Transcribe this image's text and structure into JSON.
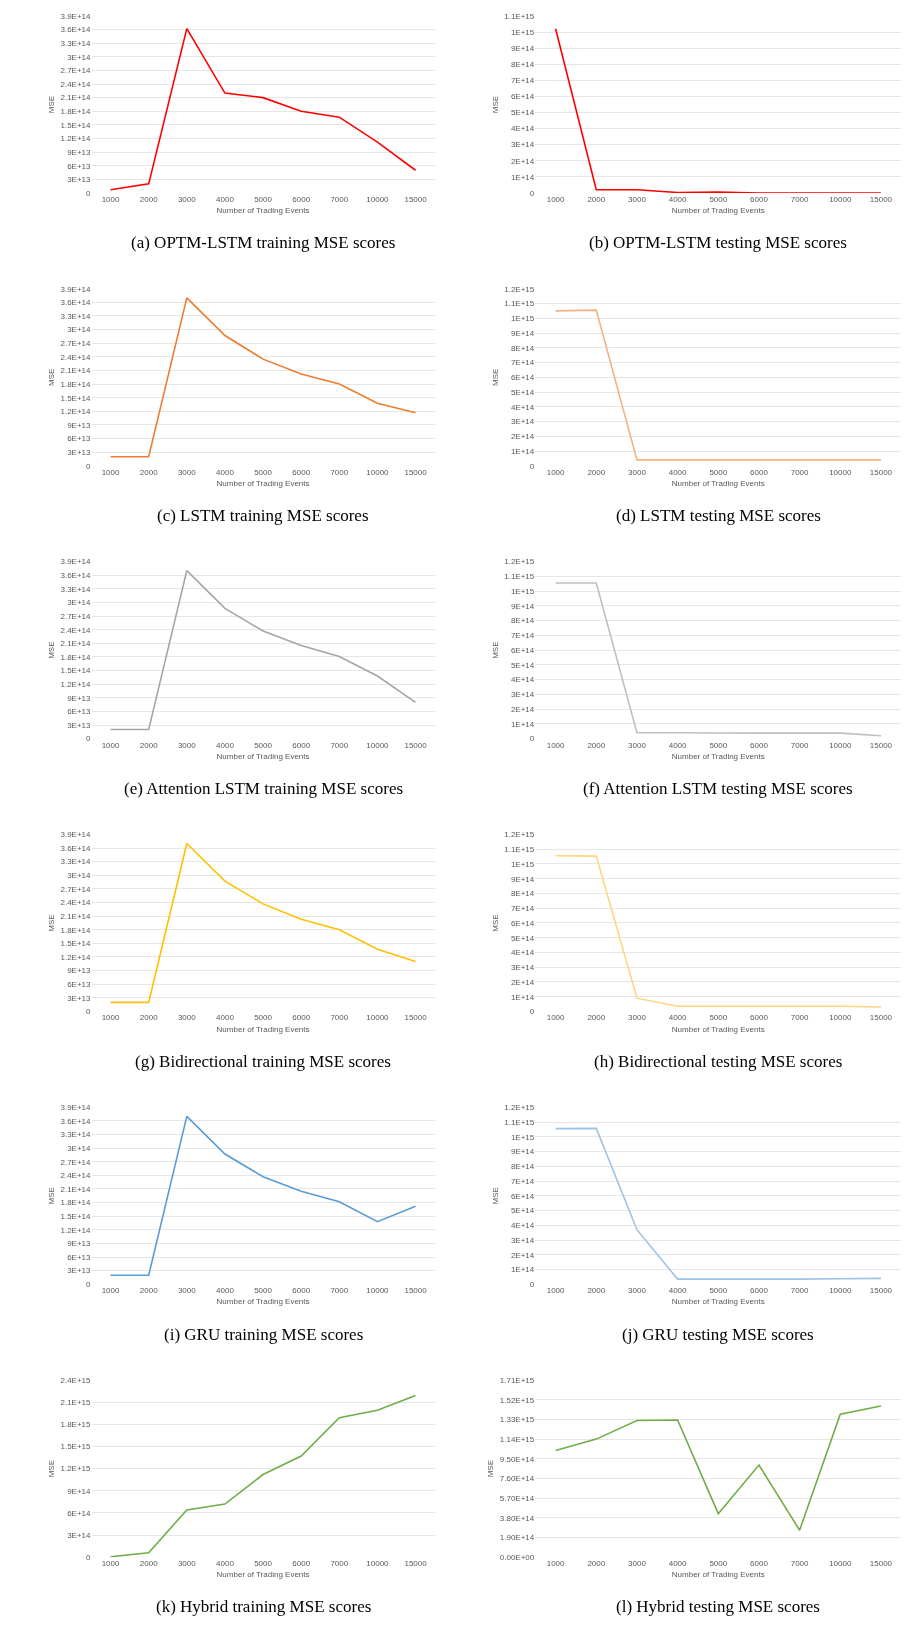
{
  "chart_data": [
    {
      "type": "line",
      "xlabel": "Number of Trading Events",
      "ylabel": "MSE",
      "annotations": [
        "(a) OPTM-LSTM training MSE scores"
      ],
      "grid": "y",
      "categories": [
        "1000",
        "2000",
        "3000",
        "4000",
        "5000",
        "6000",
        "7000",
        "10000",
        "15000"
      ],
      "series": [
        {
          "color": "#ff0000",
          "values": [
            7000000000000.0,
            20000000000000.0,
            362000000000000.0,
            220000000000000.0,
            210000000000000.0,
            180000000000000.0,
            167000000000000.0,
            112000000000000.0,
            50000000000000.0
          ]
        }
      ],
      "ylim": [
        0,
        390000000000000.0
      ],
      "yticks": [
        0,
        {
          "value": 30000000000000.0,
          "label": "3E+13"
        },
        {
          "value": 60000000000000.0,
          "label": "6E+13"
        },
        {
          "value": 90000000000000.0,
          "label": "9E+13"
        },
        {
          "value": 120000000000000.0,
          "label": "1.2E+14"
        },
        {
          "value": 150000000000000.0,
          "label": "1.5E+14"
        },
        {
          "value": 180000000000000.0,
          "label": "1.8E+14"
        },
        {
          "value": 210000000000000.0,
          "label": "2.1E+14"
        },
        {
          "value": 240000000000000.0,
          "label": "2.4E+14"
        },
        {
          "value": 270000000000000.0,
          "label": "2.7E+14"
        },
        {
          "value": 300000000000000.0,
          "label": "3E+14"
        },
        {
          "value": 330000000000000.0,
          "label": "3.3E+14"
        },
        {
          "value": 360000000000000.0,
          "label": "3.6E+14"
        },
        {
          "value": 390000000000000.0,
          "label": "3.9E+14"
        }
      ]
    },
    {
      "type": "line",
      "xlabel": "Number of Trading Events",
      "ylabel": "MSE",
      "annotations": [
        "(b) OPTM-LSTM testing MSE scores"
      ],
      "grid": "y",
      "categories": [
        "1000",
        "2000",
        "3000",
        "4000",
        "5000",
        "6000",
        "7000",
        "10000",
        "15000"
      ],
      "series": [
        {
          "color": "#ff0000",
          "values": [
            1020000000000000.0,
            20000000000000.0,
            20000000000000.0,
            3000000000000.0,
            5000000000000.0,
            0,
            0,
            0,
            0
          ]
        }
      ],
      "ylim": [
        0,
        1100000000000000.0
      ],
      "yticks": [
        0,
        {
          "value": 100000000000000.0,
          "label": "1E+14"
        },
        {
          "value": 200000000000000.0,
          "label": "2E+14"
        },
        {
          "value": 300000000000000.0,
          "label": "3E+14"
        },
        {
          "value": 400000000000000.0,
          "label": "4E+14"
        },
        {
          "value": 500000000000000.0,
          "label": "5E+14"
        },
        {
          "value": 600000000000000.0,
          "label": "6E+14"
        },
        {
          "value": 700000000000000.0,
          "label": "7E+14"
        },
        {
          "value": 800000000000000.0,
          "label": "8E+14"
        },
        {
          "value": 900000000000000.0,
          "label": "9E+14"
        },
        {
          "value": 1000000000000000.0,
          "label": "1E+15"
        },
        {
          "value": 1100000000000000.0,
          "label": "1.1E+15"
        }
      ]
    },
    {
      "type": "line",
      "xlabel": "Number of Trading Events",
      "ylabel": "MSE",
      "annotations": [
        "(c) LSTM training MSE scores"
      ],
      "grid": "y",
      "categories": [
        "1000",
        "2000",
        "3000",
        "4000",
        "5000",
        "6000",
        "7000",
        "10000",
        "15000"
      ],
      "series": [
        {
          "color": "#ed7d31",
          "values": [
            20000000000000.0,
            20000000000000.0,
            370000000000000.0,
            287000000000000.0,
            235000000000000.0,
            202000000000000.0,
            180000000000000.0,
            138000000000000.0,
            117000000000000.0
          ]
        }
      ],
      "ylim": [
        0,
        390000000000000.0
      ],
      "yticks": [
        0,
        {
          "value": 30000000000000.0,
          "label": "3E+13"
        },
        {
          "value": 60000000000000.0,
          "label": "6E+13"
        },
        {
          "value": 90000000000000.0,
          "label": "9E+13"
        },
        {
          "value": 120000000000000.0,
          "label": "1.2E+14"
        },
        {
          "value": 150000000000000.0,
          "label": "1.5E+14"
        },
        {
          "value": 180000000000000.0,
          "label": "1.8E+14"
        },
        {
          "value": 210000000000000.0,
          "label": "2.1E+14"
        },
        {
          "value": 240000000000000.0,
          "label": "2.4E+14"
        },
        {
          "value": 270000000000000.0,
          "label": "2.7E+14"
        },
        {
          "value": 300000000000000.0,
          "label": "3E+14"
        },
        {
          "value": 330000000000000.0,
          "label": "3.3E+14"
        },
        {
          "value": 360000000000000.0,
          "label": "3.6E+14"
        },
        {
          "value": 390000000000000.0,
          "label": "3.9E+14"
        }
      ]
    },
    {
      "type": "line",
      "xlabel": "Number of Trading Events",
      "ylabel": "MSE",
      "annotations": [
        "(d) LSTM testing MSE scores"
      ],
      "grid": "y",
      "categories": [
        "1000",
        "2000",
        "3000",
        "4000",
        "5000",
        "6000",
        "7000",
        "10000",
        "15000"
      ],
      "series": [
        {
          "color": "#f4b183",
          "values": [
            1050000000000000.0,
            1055000000000000.0,
            40000000000000.0,
            40000000000000.0,
            40000000000000.0,
            40000000000000.0,
            40000000000000.0,
            40000000000000.0,
            40000000000000.0
          ]
        }
      ],
      "ylim": [
        0,
        1200000000000000.0
      ],
      "yticks": [
        0,
        {
          "value": 100000000000000.0,
          "label": "1E+14"
        },
        {
          "value": 200000000000000.0,
          "label": "2E+14"
        },
        {
          "value": 300000000000000.0,
          "label": "3E+14"
        },
        {
          "value": 400000000000000.0,
          "label": "4E+14"
        },
        {
          "value": 500000000000000.0,
          "label": "5E+14"
        },
        {
          "value": 600000000000000.0,
          "label": "6E+14"
        },
        {
          "value": 700000000000000.0,
          "label": "7E+14"
        },
        {
          "value": 800000000000000.0,
          "label": "8E+14"
        },
        {
          "value": 900000000000000.0,
          "label": "9E+14"
        },
        {
          "value": 1000000000000000.0,
          "label": "1E+15"
        },
        {
          "value": 1100000000000000.0,
          "label": "1.1E+15"
        },
        {
          "value": 1200000000000000.0,
          "label": "1.2E+15"
        }
      ]
    },
    {
      "type": "line",
      "xlabel": "Number of Trading Events",
      "ylabel": "MSE",
      "annotations": [
        "(e) Attention LSTM training MSE scores"
      ],
      "grid": "y",
      "categories": [
        "1000",
        "2000",
        "3000",
        "4000",
        "5000",
        "6000",
        "7000",
        "10000",
        "15000"
      ],
      "series": [
        {
          "color": "#a5a5a5",
          "values": [
            20000000000000.0,
            20000000000000.0,
            370000000000000.0,
            287000000000000.0,
            237000000000000.0,
            205000000000000.0,
            181000000000000.0,
            138000000000000.0,
            80000000000000.0
          ]
        }
      ],
      "ylim": [
        0,
        390000000000000.0
      ],
      "yticks": [
        0,
        {
          "value": 30000000000000.0,
          "label": "3E+13"
        },
        {
          "value": 60000000000000.0,
          "label": "6E+13"
        },
        {
          "value": 90000000000000.0,
          "label": "9E+13"
        },
        {
          "value": 120000000000000.0,
          "label": "1.2E+14"
        },
        {
          "value": 150000000000000.0,
          "label": "1.5E+14"
        },
        {
          "value": 180000000000000.0,
          "label": "1.8E+14"
        },
        {
          "value": 210000000000000.0,
          "label": "2.1E+14"
        },
        {
          "value": 240000000000000.0,
          "label": "2.4E+14"
        },
        {
          "value": 270000000000000.0,
          "label": "2.7E+14"
        },
        {
          "value": 300000000000000.0,
          "label": "3E+14"
        },
        {
          "value": 330000000000000.0,
          "label": "3.3E+14"
        },
        {
          "value": 360000000000000.0,
          "label": "3.6E+14"
        },
        {
          "value": 390000000000000.0,
          "label": "3.9E+14"
        }
      ]
    },
    {
      "type": "line",
      "xlabel": "Number of Trading Events",
      "ylabel": "MSE",
      "annotations": [
        "(f) Attention LSTM testing MSE scores"
      ],
      "grid": "y",
      "categories": [
        "1000",
        "2000",
        "3000",
        "4000",
        "5000",
        "6000",
        "7000",
        "10000",
        "15000"
      ],
      "series": [
        {
          "color": "#bfbfbf",
          "values": [
            1055000000000000.0,
            1055000000000000.0,
            40000000000000.0,
            40000000000000.0,
            38000000000000.0,
            37000000000000.0,
            37000000000000.0,
            37000000000000.0,
            20000000000000.0
          ]
        }
      ],
      "ylim": [
        0,
        1200000000000000.0
      ],
      "yticks": [
        0,
        {
          "value": 100000000000000.0,
          "label": "1E+14"
        },
        {
          "value": 200000000000000.0,
          "label": "2E+14"
        },
        {
          "value": 300000000000000.0,
          "label": "3E+14"
        },
        {
          "value": 400000000000000.0,
          "label": "4E+14"
        },
        {
          "value": 500000000000000.0,
          "label": "5E+14"
        },
        {
          "value": 600000000000000.0,
          "label": "6E+14"
        },
        {
          "value": 700000000000000.0,
          "label": "7E+14"
        },
        {
          "value": 800000000000000.0,
          "label": "8E+14"
        },
        {
          "value": 900000000000000.0,
          "label": "9E+14"
        },
        {
          "value": 1000000000000000.0,
          "label": "1E+15"
        },
        {
          "value": 1100000000000000.0,
          "label": "1.1E+15"
        },
        {
          "value": 1200000000000000.0,
          "label": "1.2E+15"
        }
      ]
    },
    {
      "type": "line",
      "xlabel": "Number of Trading Events",
      "ylabel": "MSE",
      "annotations": [
        "(g) Bidirectional training MSE scores"
      ],
      "grid": "y",
      "categories": [
        "1000",
        "2000",
        "3000",
        "4000",
        "5000",
        "6000",
        "7000",
        "10000",
        "15000"
      ],
      "series": [
        {
          "color": "#ffc000",
          "values": [
            20000000000000.0,
            20000000000000.0,
            370000000000000.0,
            287000000000000.0,
            237000000000000.0,
            203000000000000.0,
            180000000000000.0,
            137000000000000.0,
            110000000000000.0
          ]
        }
      ],
      "ylim": [
        0,
        390000000000000.0
      ],
      "yticks": [
        0,
        {
          "value": 30000000000000.0,
          "label": "3E+13"
        },
        {
          "value": 60000000000000.0,
          "label": "6E+13"
        },
        {
          "value": 90000000000000.0,
          "label": "9E+13"
        },
        {
          "value": 120000000000000.0,
          "label": "1.2E+14"
        },
        {
          "value": 150000000000000.0,
          "label": "1.5E+14"
        },
        {
          "value": 180000000000000.0,
          "label": "1.8E+14"
        },
        {
          "value": 210000000000000.0,
          "label": "2.1E+14"
        },
        {
          "value": 240000000000000.0,
          "label": "2.4E+14"
        },
        {
          "value": 270000000000000.0,
          "label": "2.7E+14"
        },
        {
          "value": 300000000000000.0,
          "label": "3E+14"
        },
        {
          "value": 330000000000000.0,
          "label": "3.3E+14"
        },
        {
          "value": 360000000000000.0,
          "label": "3.6E+14"
        },
        {
          "value": 390000000000000.0,
          "label": "3.9E+14"
        }
      ]
    },
    {
      "type": "line",
      "xlabel": "Number of Trading Events",
      "ylabel": "MSE",
      "annotations": [
        "(h) Bidirectional testing MSE scores"
      ],
      "grid": "y",
      "categories": [
        "1000",
        "2000",
        "3000",
        "4000",
        "5000",
        "6000",
        "7000",
        "10000",
        "15000"
      ],
      "series": [
        {
          "color": "#ffd580",
          "values": [
            1055000000000000.0,
            1053000000000000.0,
            90000000000000.0,
            35000000000000.0,
            35000000000000.0,
            35000000000000.0,
            35000000000000.0,
            35000000000000.0,
            30000000000000.0
          ]
        }
      ],
      "ylim": [
        0,
        1200000000000000.0
      ],
      "yticks": [
        0,
        {
          "value": 100000000000000.0,
          "label": "1E+14"
        },
        {
          "value": 200000000000000.0,
          "label": "2E+14"
        },
        {
          "value": 300000000000000.0,
          "label": "3E+14"
        },
        {
          "value": 400000000000000.0,
          "label": "4E+14"
        },
        {
          "value": 500000000000000.0,
          "label": "5E+14"
        },
        {
          "value": 600000000000000.0,
          "label": "6E+14"
        },
        {
          "value": 700000000000000.0,
          "label": "7E+14"
        },
        {
          "value": 800000000000000.0,
          "label": "8E+14"
        },
        {
          "value": 900000000000000.0,
          "label": "9E+14"
        },
        {
          "value": 1000000000000000.0,
          "label": "1E+15"
        },
        {
          "value": 1100000000000000.0,
          "label": "1.1E+15"
        },
        {
          "value": 1200000000000000.0,
          "label": "1.2E+15"
        }
      ]
    },
    {
      "type": "line",
      "xlabel": "Number of Trading Events",
      "ylabel": "MSE",
      "annotations": [
        "(i) GRU training MSE scores"
      ],
      "grid": "y",
      "categories": [
        "1000",
        "2000",
        "3000",
        "4000",
        "5000",
        "6000",
        "7000",
        "10000",
        "15000"
      ],
      "series": [
        {
          "color": "#5b9bd5",
          "values": [
            20000000000000.0,
            20000000000000.0,
            370000000000000.0,
            287000000000000.0,
            237000000000000.0,
            205000000000000.0,
            182000000000000.0,
            138000000000000.0,
            172000000000000.0
          ]
        }
      ],
      "ylim": [
        0,
        390000000000000.0
      ],
      "yticks": [
        0,
        {
          "value": 30000000000000.0,
          "label": "3E+13"
        },
        {
          "value": 60000000000000.0,
          "label": "6E+13"
        },
        {
          "value": 90000000000000.0,
          "label": "9E+13"
        },
        {
          "value": 120000000000000.0,
          "label": "1.2E+14"
        },
        {
          "value": 150000000000000.0,
          "label": "1.5E+14"
        },
        {
          "value": 180000000000000.0,
          "label": "1.8E+14"
        },
        {
          "value": 210000000000000.0,
          "label": "2.1E+14"
        },
        {
          "value": 240000000000000.0,
          "label": "2.4E+14"
        },
        {
          "value": 270000000000000.0,
          "label": "2.7E+14"
        },
        {
          "value": 300000000000000.0,
          "label": "3E+14"
        },
        {
          "value": 330000000000000.0,
          "label": "3.3E+14"
        },
        {
          "value": 360000000000000.0,
          "label": "3.6E+14"
        },
        {
          "value": 390000000000000.0,
          "label": "3.9E+14"
        }
      ]
    },
    {
      "type": "line",
      "xlabel": "Number of Trading Events",
      "ylabel": "MSE",
      "annotations": [
        "(j) GRU testing MSE scores"
      ],
      "grid": "y",
      "categories": [
        "1000",
        "2000",
        "3000",
        "4000",
        "5000",
        "6000",
        "7000",
        "10000",
        "15000"
      ],
      "series": [
        {
          "color": "#9dc3e6",
          "values": [
            1055000000000000.0,
            1057000000000000.0,
            370000000000000.0,
            35000000000000.0,
            35000000000000.0,
            35000000000000.0,
            35000000000000.0,
            38000000000000.0,
            40000000000000.0
          ]
        }
      ],
      "ylim": [
        0,
        1200000000000000.0
      ],
      "yticks": [
        0,
        {
          "value": 100000000000000.0,
          "label": "1E+14"
        },
        {
          "value": 200000000000000.0,
          "label": "2E+14"
        },
        {
          "value": 300000000000000.0,
          "label": "3E+14"
        },
        {
          "value": 400000000000000.0,
          "label": "4E+14"
        },
        {
          "value": 500000000000000.0,
          "label": "5E+14"
        },
        {
          "value": 600000000000000.0,
          "label": "6E+14"
        },
        {
          "value": 700000000000000.0,
          "label": "7E+14"
        },
        {
          "value": 800000000000000.0,
          "label": "8E+14"
        },
        {
          "value": 900000000000000.0,
          "label": "9E+14"
        },
        {
          "value": 1000000000000000.0,
          "label": "1E+15"
        },
        {
          "value": 1100000000000000.0,
          "label": "1.1E+15"
        },
        {
          "value": 1200000000000000.0,
          "label": "1.2E+15"
        }
      ]
    },
    {
      "type": "line",
      "xlabel": "Number of Trading Events",
      "ylabel": "MSE",
      "annotations": [
        "(k) Hybrid training MSE scores"
      ],
      "grid": "y",
      "categories": [
        "1000",
        "2000",
        "3000",
        "4000",
        "5000",
        "6000",
        "7000",
        "10000",
        "15000"
      ],
      "series": [
        {
          "color": "#70ad47",
          "values": [
            5000000000000.0,
            60000000000000.0,
            640000000000000.0,
            720000000000000.0,
            1120000000000000.0,
            1370000000000000.0,
            1890000000000000.0,
            1990000000000000.0,
            2190000000000000.0
          ]
        }
      ],
      "ylim": [
        0,
        2400000000000000.0
      ],
      "yticks": [
        0,
        {
          "value": 300000000000000.0,
          "label": "3E+14"
        },
        {
          "value": 600000000000000.0,
          "label": "6E+14"
        },
        {
          "value": 900000000000000.0,
          "label": "9E+14"
        },
        {
          "value": 1200000000000000.0,
          "label": "1.2E+15"
        },
        {
          "value": 1500000000000000.0,
          "label": "1.5E+15"
        },
        {
          "value": 1800000000000000.0,
          "label": "1.8E+15"
        },
        {
          "value": 2100000000000000.0,
          "label": "2.1E+15"
        },
        {
          "value": 2400000000000000.0,
          "label": "2.4E+15"
        }
      ]
    },
    {
      "type": "line",
      "xlabel": "Number of Trading Events",
      "ylabel": "MSE",
      "annotations": [
        "(l) Hybrid testing MSE scores"
      ],
      "grid": "y",
      "categories": [
        "1000",
        "2000",
        "3000",
        "4000",
        "5000",
        "6000",
        "7000",
        "10000",
        "15000"
      ],
      "series": [
        {
          "color": "#70ad47",
          "values": [
            1030000000000000.0,
            1140000000000000.0,
            1320000000000000.0,
            1325000000000000.0,
            420000000000000.0,
            890000000000000.0,
            260000000000000.0,
            1380000000000000.0,
            1460000000000000.0
          ]
        }
      ],
      "ylim": [
        0,
        1710000000000000.0
      ],
      "yticks": [
        {
          "value": 0,
          "label": "0.00E+00"
        },
        {
          "value": 190000000000000.0,
          "label": "1.90E+14"
        },
        {
          "value": 380000000000000.0,
          "label": "3.80E+14"
        },
        {
          "value": 570000000000000.0,
          "label": "5.70E+14"
        },
        {
          "value": 760000000000000.0,
          "label": "7.60E+14"
        },
        {
          "value": 950000000000000.0,
          "label": "9.50E+14"
        },
        {
          "value": 1140000000000000.0,
          "label": "1.14E+15"
        },
        {
          "value": 1330000000000000.0,
          "label": "1.33E+15"
        },
        {
          "value": 1520000000000000.0,
          "label": "1.52E+15"
        },
        {
          "value": 1710000000000000.0,
          "label": "1.71E+15"
        }
      ]
    }
  ]
}
